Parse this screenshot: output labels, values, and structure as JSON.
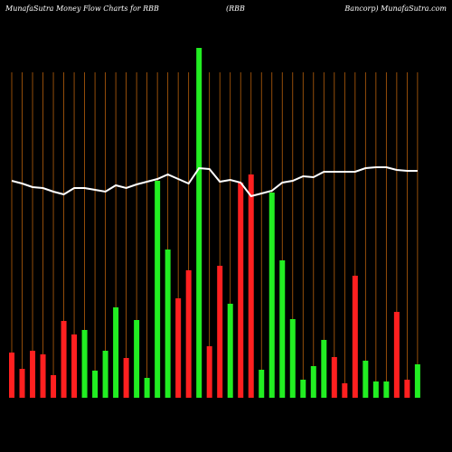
{
  "chart_data": {
    "type": "bar",
    "title": "MunafaSutra  Money Flow  Charts for RBB",
    "subtitle": "(RBB",
    "source": "Bancorp) MunafaSutra.com",
    "categories": [
      null,
      null,
      null,
      null,
      null,
      null,
      null,
      null,
      null,
      null,
      null,
      null,
      null,
      null,
      null,
      null,
      null,
      null,
      null,
      null,
      null,
      null,
      null,
      null,
      null,
      null,
      null,
      null,
      null,
      null,
      null,
      null,
      null,
      null,
      null,
      null,
      null,
      null,
      null,
      null
    ],
    "series": [
      {
        "type": "bar",
        "values": [
          50,
          32,
          52,
          48,
          25,
          85,
          70,
          75,
          30,
          52,
          100,
          44,
          86,
          22,
          240,
          164,
          110,
          141,
          387,
          57,
          146,
          104,
          238,
          247,
          31,
          227,
          152,
          87,
          20,
          35,
          64,
          45,
          16,
          135,
          41,
          18,
          18,
          95,
          20,
          37
        ],
        "colors": [
          "#ff2020",
          "#ff2020",
          "#ff2020",
          "#ff2020",
          "#ff2020",
          "#ff2020",
          "#ff2020",
          "#22ee22",
          "#22ee22",
          "#22ee22",
          "#22ee22",
          "#ff2020",
          "#22ee22",
          "#22ee22",
          "#22ee22",
          "#22ee22",
          "#ff2020",
          "#ff2020",
          "#22ee22",
          "#ff2020",
          "#ff2020",
          "#22ee22",
          "#ff2020",
          "#ff2020",
          "#22ee22",
          "#22ee22",
          "#22ee22",
          "#22ee22",
          "#22ee22",
          "#22ee22",
          "#22ee22",
          "#ff2020",
          "#ff2020",
          "#ff2020",
          "#22ee22",
          "#22ee22",
          "#22ee22",
          "#ff2020",
          "#ff2020",
          "#22ee22"
        ]
      },
      {
        "type": "line",
        "color": "#ffffff",
        "values": [
          240,
          237,
          233,
          232,
          228,
          225,
          232,
          232,
          230,
          228,
          235,
          232,
          236,
          239,
          242,
          247,
          242,
          237,
          254,
          253,
          239,
          241,
          238,
          223,
          226,
          229,
          238,
          240,
          245,
          244,
          250,
          250,
          250,
          250,
          254,
          255,
          255,
          252,
          251,
          251
        ]
      }
    ],
    "ylim": [
      0,
      440
    ],
    "grid_color": "#b8600c"
  }
}
